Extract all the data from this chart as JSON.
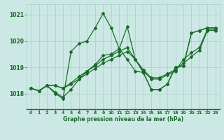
{
  "xlabel": "Graphe pression niveau de la mer (hPa)",
  "bg_color": "#cce8e4",
  "grid_color": "#aaccc8",
  "line_color": "#1a6b2a",
  "xlim": [
    -0.5,
    23.5
  ],
  "ylim": [
    1017.4,
    1021.4
  ],
  "yticks": [
    1018,
    1019,
    1020,
    1021
  ],
  "xticks": [
    0,
    1,
    2,
    3,
    4,
    5,
    6,
    7,
    8,
    9,
    10,
    11,
    12,
    13,
    14,
    15,
    16,
    17,
    18,
    19,
    20,
    21,
    22,
    23
  ],
  "series1_x": [
    0,
    1,
    2,
    3,
    4,
    5,
    6,
    7,
    8,
    9,
    10,
    11,
    12,
    13,
    14,
    15,
    16,
    17,
    18,
    19,
    20,
    21,
    22,
    23
  ],
  "series1_y": [
    1018.2,
    1018.1,
    1018.3,
    1018.0,
    1017.8,
    1019.6,
    1019.9,
    1020.0,
    1020.5,
    1021.05,
    1020.5,
    1019.7,
    1019.3,
    1018.85,
    1018.8,
    1018.15,
    1018.15,
    1018.35,
    1019.0,
    1019.05,
    1020.3,
    1020.4,
    1020.5,
    1020.5
  ],
  "series2_x": [
    0,
    1,
    2,
    3,
    4,
    5,
    6,
    7,
    8,
    9,
    10,
    11,
    12,
    13,
    14,
    15,
    16,
    17,
    18,
    19,
    20,
    21,
    22,
    23
  ],
  "series2_y": [
    1018.2,
    1018.1,
    1018.3,
    1018.05,
    1017.85,
    1018.15,
    1018.55,
    1018.85,
    1019.1,
    1019.45,
    1019.5,
    1019.7,
    1020.55,
    1019.3,
    1018.8,
    1018.15,
    1018.15,
    1018.35,
    1019.0,
    1019.05,
    1020.3,
    1020.4,
    1020.5,
    1020.5
  ],
  "series3_x": [
    0,
    1,
    2,
    3,
    4,
    5,
    6,
    7,
    8,
    9,
    10,
    11,
    12,
    13,
    14,
    15,
    16,
    17,
    18,
    19,
    20,
    21,
    22,
    23
  ],
  "series3_y": [
    1018.2,
    1018.1,
    1018.3,
    1018.3,
    1018.2,
    1018.4,
    1018.65,
    1018.85,
    1019.05,
    1019.3,
    1019.45,
    1019.6,
    1019.75,
    1019.3,
    1018.85,
    1018.55,
    1018.55,
    1018.7,
    1018.85,
    1019.3,
    1019.55,
    1019.75,
    1020.45,
    1020.45
  ],
  "series4_x": [
    0,
    1,
    2,
    3,
    4,
    5,
    6,
    7,
    8,
    9,
    10,
    11,
    12,
    13,
    14,
    15,
    16,
    17,
    18,
    19,
    20,
    21,
    22,
    23
  ],
  "series4_y": [
    1018.2,
    1018.1,
    1018.3,
    1018.3,
    1018.2,
    1018.35,
    1018.55,
    1018.75,
    1018.95,
    1019.15,
    1019.3,
    1019.45,
    1019.6,
    1019.3,
    1018.9,
    1018.6,
    1018.6,
    1018.75,
    1018.9,
    1019.15,
    1019.4,
    1019.65,
    1020.4,
    1020.4
  ]
}
